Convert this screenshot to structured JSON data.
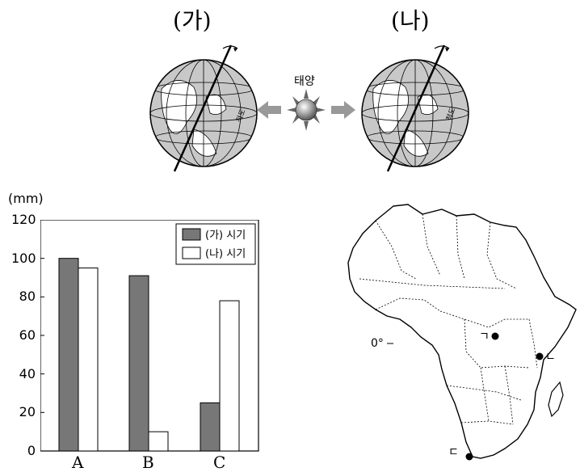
{
  "globes": [
    {
      "label": "(가)",
      "side_text": "적도"
    },
    {
      "label": "(나)",
      "side_text": "적도"
    }
  ],
  "sun": {
    "label": "태양"
  },
  "chart_data": {
    "type": "bar",
    "ylabel_unit": "(mm)",
    "ylim": [
      0,
      120
    ],
    "yticks": [
      0,
      20,
      40,
      60,
      80,
      100,
      120
    ],
    "categories": [
      "A",
      "B",
      "C"
    ],
    "series": [
      {
        "name": "(가) 시기",
        "values": [
          100,
          91,
          25
        ],
        "color": "#777777"
      },
      {
        "name": "(나) 시기",
        "values": [
          95,
          10,
          78
        ],
        "color": "#ffffff"
      }
    ],
    "legend": "top-right"
  },
  "map": {
    "equator_label": "0°",
    "points": [
      {
        "label": "ㄱ"
      },
      {
        "label": "ㄴ"
      },
      {
        "label": "ㄷ"
      }
    ]
  }
}
